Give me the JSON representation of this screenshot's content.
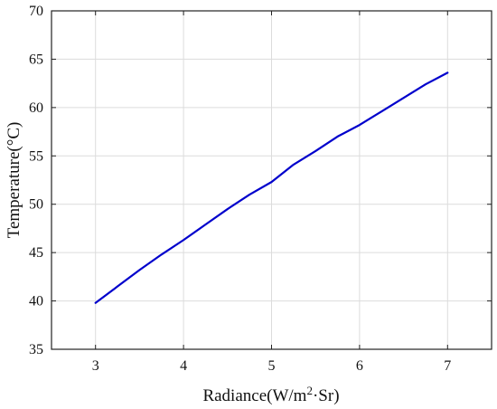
{
  "chart_data": {
    "type": "line",
    "xlabel": "Radiance(W/m",
    "xlabel_sup": "2",
    "xlabel_tail": "·Sr)",
    "ylabel": "Temperature(°C)",
    "xlim": [
      2.5,
      7.5
    ],
    "ylim": [
      35,
      70
    ],
    "xticks": [
      3,
      4,
      5,
      6,
      7
    ],
    "yticks": [
      35,
      40,
      45,
      50,
      55,
      60,
      65,
      70
    ],
    "grid": true,
    "series": [
      {
        "color": "#0000cc",
        "x": [
          3.0,
          3.25,
          3.5,
          3.75,
          4.0,
          4.25,
          4.5,
          4.75,
          5.0,
          5.25,
          5.5,
          5.75,
          6.0,
          6.25,
          6.5,
          6.75,
          7.0
        ],
        "y": [
          39.8,
          41.5,
          43.2,
          44.8,
          46.3,
          47.9,
          49.5,
          51.0,
          52.3,
          54.1,
          55.5,
          57.0,
          58.2,
          59.6,
          61.0,
          62.4,
          63.6
        ]
      }
    ]
  }
}
